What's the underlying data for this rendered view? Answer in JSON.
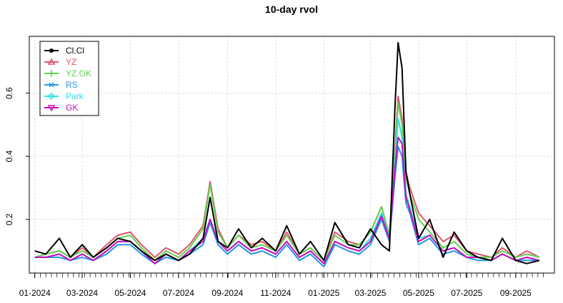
{
  "chart_data": {
    "type": "line",
    "title": "10-day rvol",
    "xlabel": "",
    "ylabel": "",
    "ylim": [
      0.03,
      0.78
    ],
    "y_ticks": [
      0.2,
      0.4,
      0.6
    ],
    "y_tick_labels": [
      "0.2",
      "0.4",
      "0.6"
    ],
    "x_range": [
      "2023-12-25",
      "2025-10-20"
    ],
    "x_ticks": [
      "2024-01-01",
      "2024-03-01",
      "2024-05-01",
      "2024-07-01",
      "2024-09-01",
      "2024-11-01",
      "2025-01-01",
      "2025-03-01",
      "2025-05-01",
      "2025-07-01",
      "2025-09-01"
    ],
    "x_tick_labels": [
      "01-2024",
      "03-2024",
      "05-2024",
      "07-2024",
      "09-2024",
      "11-2024",
      "01-2025",
      "03-2025",
      "05-2025",
      "07-2025",
      "09-2025"
    ],
    "grid": true,
    "legend_position": "top-left",
    "series": [
      {
        "name": "Cl.Cl",
        "color": "#000000",
        "marker": "circle",
        "x": [
          "2024-01-01",
          "2024-01-15",
          "2024-02-01",
          "2024-02-15",
          "2024-03-01",
          "2024-03-15",
          "2024-04-01",
          "2024-04-15",
          "2024-05-01",
          "2024-05-15",
          "2024-06-01",
          "2024-06-15",
          "2024-07-01",
          "2024-07-15",
          "2024-08-01",
          "2024-08-10",
          "2024-08-20",
          "2024-09-01",
          "2024-09-15",
          "2024-10-01",
          "2024-10-15",
          "2024-11-01",
          "2024-11-15",
          "2024-12-01",
          "2024-12-15",
          "2025-01-01",
          "2025-01-15",
          "2025-02-01",
          "2025-02-15",
          "2025-03-01",
          "2025-03-15",
          "2025-03-25",
          "2025-04-01",
          "2025-04-05",
          "2025-04-10",
          "2025-04-15",
          "2025-04-20",
          "2025-05-01",
          "2025-05-15",
          "2025-06-01",
          "2025-06-15",
          "2025-07-01",
          "2025-07-15",
          "2025-08-01",
          "2025-08-15",
          "2025-09-01",
          "2025-09-15",
          "2025-10-01"
        ],
        "values": [
          0.1,
          0.09,
          0.14,
          0.08,
          0.12,
          0.08,
          0.11,
          0.14,
          0.13,
          0.1,
          0.07,
          0.09,
          0.07,
          0.09,
          0.14,
          0.27,
          0.13,
          0.11,
          0.17,
          0.11,
          0.14,
          0.1,
          0.18,
          0.09,
          0.13,
          0.07,
          0.19,
          0.12,
          0.11,
          0.17,
          0.12,
          0.1,
          0.55,
          0.76,
          0.68,
          0.35,
          0.28,
          0.14,
          0.2,
          0.08,
          0.16,
          0.1,
          0.08,
          0.07,
          0.14,
          0.07,
          0.06,
          0.07
        ]
      },
      {
        "name": "YZ",
        "color": "#DF536B",
        "marker": "triangle",
        "x": [
          "2024-01-01",
          "2024-01-15",
          "2024-02-01",
          "2024-02-15",
          "2024-03-01",
          "2024-03-15",
          "2024-04-01",
          "2024-04-15",
          "2024-05-01",
          "2024-05-15",
          "2024-06-01",
          "2024-06-15",
          "2024-07-01",
          "2024-07-15",
          "2024-08-01",
          "2024-08-10",
          "2024-08-20",
          "2024-09-01",
          "2024-09-15",
          "2024-10-01",
          "2024-10-15",
          "2024-11-01",
          "2024-11-15",
          "2024-12-01",
          "2024-12-15",
          "2025-01-01",
          "2025-01-15",
          "2025-02-01",
          "2025-02-15",
          "2025-03-01",
          "2025-03-15",
          "2025-03-25",
          "2025-04-01",
          "2025-04-05",
          "2025-04-10",
          "2025-04-15",
          "2025-04-20",
          "2025-05-01",
          "2025-05-15",
          "2025-06-01",
          "2025-06-15",
          "2025-07-01",
          "2025-07-15",
          "2025-08-01",
          "2025-08-15",
          "2025-09-01",
          "2025-09-15",
          "2025-10-01"
        ],
        "values": [
          0.08,
          0.09,
          0.1,
          0.08,
          0.11,
          0.08,
          0.12,
          0.15,
          0.16,
          0.12,
          0.08,
          0.11,
          0.09,
          0.12,
          0.18,
          0.32,
          0.17,
          0.11,
          0.15,
          0.12,
          0.13,
          0.1,
          0.16,
          0.09,
          0.11,
          0.07,
          0.16,
          0.13,
          0.12,
          0.16,
          0.24,
          0.15,
          0.42,
          0.59,
          0.52,
          0.35,
          0.3,
          0.22,
          0.18,
          0.13,
          0.15,
          0.1,
          0.09,
          0.08,
          0.11,
          0.08,
          0.1,
          0.08
        ]
      },
      {
        "name": "YZ.GK",
        "color": "#61D04F",
        "marker": "plus",
        "x": [
          "2024-01-01",
          "2024-01-15",
          "2024-02-01",
          "2024-02-15",
          "2024-03-01",
          "2024-03-15",
          "2024-04-01",
          "2024-04-15",
          "2024-05-01",
          "2024-05-15",
          "2024-06-01",
          "2024-06-15",
          "2024-07-01",
          "2024-07-15",
          "2024-08-01",
          "2024-08-10",
          "2024-08-20",
          "2024-09-01",
          "2024-09-15",
          "2024-10-01",
          "2024-10-15",
          "2024-11-01",
          "2024-11-15",
          "2024-12-01",
          "2024-12-15",
          "2025-01-01",
          "2025-01-15",
          "2025-02-01",
          "2025-02-15",
          "2025-03-01",
          "2025-03-15",
          "2025-03-25",
          "2025-04-01",
          "2025-04-05",
          "2025-04-10",
          "2025-04-15",
          "2025-04-20",
          "2025-05-01",
          "2025-05-15",
          "2025-06-01",
          "2025-06-15",
          "2025-07-01",
          "2025-07-15",
          "2025-08-01",
          "2025-08-15",
          "2025-09-01",
          "2025-09-15",
          "2025-10-01"
        ],
        "values": [
          0.08,
          0.09,
          0.1,
          0.08,
          0.1,
          0.08,
          0.11,
          0.14,
          0.15,
          0.11,
          0.07,
          0.1,
          0.08,
          0.11,
          0.17,
          0.31,
          0.16,
          0.11,
          0.15,
          0.11,
          0.12,
          0.1,
          0.15,
          0.09,
          0.11,
          0.07,
          0.15,
          0.12,
          0.12,
          0.16,
          0.24,
          0.15,
          0.4,
          0.57,
          0.5,
          0.33,
          0.28,
          0.2,
          0.16,
          0.11,
          0.13,
          0.09,
          0.08,
          0.08,
          0.1,
          0.08,
          0.09,
          0.08
        ]
      },
      {
        "name": "RS",
        "color": "#2297E6",
        "marker": "cross",
        "x": [
          "2024-01-01",
          "2024-01-15",
          "2024-02-01",
          "2024-02-15",
          "2024-03-01",
          "2024-03-15",
          "2024-04-01",
          "2024-04-15",
          "2024-05-01",
          "2024-05-15",
          "2024-06-01",
          "2024-06-15",
          "2024-07-01",
          "2024-07-15",
          "2024-08-01",
          "2024-08-10",
          "2024-08-20",
          "2024-09-01",
          "2024-09-15",
          "2024-10-01",
          "2024-10-15",
          "2024-11-01",
          "2024-11-15",
          "2024-12-01",
          "2024-12-15",
          "2025-01-01",
          "2025-01-15",
          "2025-02-01",
          "2025-02-15",
          "2025-03-01",
          "2025-03-15",
          "2025-03-25",
          "2025-04-01",
          "2025-04-05",
          "2025-04-10",
          "2025-04-15",
          "2025-04-20",
          "2025-05-01",
          "2025-05-15",
          "2025-06-01",
          "2025-06-15",
          "2025-07-01",
          "2025-07-15",
          "2025-08-01",
          "2025-08-15",
          "2025-09-01",
          "2025-09-15",
          "2025-10-01"
        ],
        "values": [
          0.08,
          0.08,
          0.08,
          0.07,
          0.08,
          0.07,
          0.09,
          0.12,
          0.12,
          0.09,
          0.06,
          0.08,
          0.07,
          0.09,
          0.12,
          0.19,
          0.12,
          0.09,
          0.12,
          0.09,
          0.1,
          0.08,
          0.12,
          0.07,
          0.09,
          0.05,
          0.12,
          0.1,
          0.09,
          0.12,
          0.2,
          0.13,
          0.33,
          0.43,
          0.4,
          0.25,
          0.22,
          0.12,
          0.14,
          0.09,
          0.1,
          0.08,
          0.07,
          0.07,
          0.09,
          0.07,
          0.07,
          0.07
        ]
      },
      {
        "name": "Park",
        "color": "#28E2E5",
        "marker": "diamond",
        "x": [
          "2024-01-01",
          "2024-01-15",
          "2024-02-01",
          "2024-02-15",
          "2024-03-01",
          "2024-03-15",
          "2024-04-01",
          "2024-04-15",
          "2024-05-01",
          "2024-05-15",
          "2024-06-01",
          "2024-06-15",
          "2024-07-01",
          "2024-07-15",
          "2024-08-01",
          "2024-08-10",
          "2024-08-20",
          "2024-09-01",
          "2024-09-15",
          "2024-10-01",
          "2024-10-15",
          "2024-11-01",
          "2024-11-15",
          "2024-12-01",
          "2024-12-15",
          "2025-01-01",
          "2025-01-15",
          "2025-02-01",
          "2025-02-15",
          "2025-03-01",
          "2025-03-15",
          "2025-03-25",
          "2025-04-01",
          "2025-04-05",
          "2025-04-10",
          "2025-04-15",
          "2025-04-20",
          "2025-05-01",
          "2025-05-15",
          "2025-06-01",
          "2025-06-15",
          "2025-07-01",
          "2025-07-15",
          "2025-08-01",
          "2025-08-15",
          "2025-09-01",
          "2025-09-15",
          "2025-10-01"
        ],
        "values": [
          0.08,
          0.08,
          0.09,
          0.07,
          0.09,
          0.07,
          0.1,
          0.13,
          0.13,
          0.1,
          0.06,
          0.09,
          0.07,
          0.1,
          0.14,
          0.2,
          0.13,
          0.1,
          0.13,
          0.1,
          0.11,
          0.09,
          0.13,
          0.08,
          0.1,
          0.06,
          0.13,
          0.11,
          0.1,
          0.14,
          0.22,
          0.14,
          0.38,
          0.52,
          0.46,
          0.28,
          0.24,
          0.14,
          0.15,
          0.1,
          0.11,
          0.08,
          0.08,
          0.07,
          0.09,
          0.07,
          0.08,
          0.07
        ]
      },
      {
        "name": "GK",
        "color": "#CD0BBC",
        "marker": "triangle-down",
        "x": [
          "2024-01-01",
          "2024-01-15",
          "2024-02-01",
          "2024-02-15",
          "2024-03-01",
          "2024-03-15",
          "2024-04-01",
          "2024-04-15",
          "2024-05-01",
          "2024-05-15",
          "2024-06-01",
          "2024-06-15",
          "2024-07-01",
          "2024-07-15",
          "2024-08-01",
          "2024-08-10",
          "2024-08-20",
          "2024-09-01",
          "2024-09-15",
          "2024-10-01",
          "2024-10-15",
          "2024-11-01",
          "2024-11-15",
          "2024-12-01",
          "2024-12-15",
          "2025-01-01",
          "2025-01-15",
          "2025-02-01",
          "2025-02-15",
          "2025-03-01",
          "2025-03-15",
          "2025-03-25",
          "2025-04-01",
          "2025-04-05",
          "2025-04-10",
          "2025-04-15",
          "2025-04-20",
          "2025-05-01",
          "2025-05-15",
          "2025-06-01",
          "2025-06-15",
          "2025-07-01",
          "2025-07-15",
          "2025-08-01",
          "2025-08-15",
          "2025-09-01",
          "2025-09-15",
          "2025-10-01"
        ],
        "values": [
          0.08,
          0.08,
          0.09,
          0.07,
          0.09,
          0.07,
          0.1,
          0.13,
          0.13,
          0.1,
          0.06,
          0.09,
          0.07,
          0.1,
          0.13,
          0.2,
          0.13,
          0.1,
          0.13,
          0.1,
          0.11,
          0.09,
          0.13,
          0.08,
          0.1,
          0.06,
          0.13,
          0.11,
          0.1,
          0.13,
          0.21,
          0.14,
          0.36,
          0.46,
          0.44,
          0.27,
          0.23,
          0.13,
          0.15,
          0.1,
          0.11,
          0.08,
          0.08,
          0.07,
          0.09,
          0.07,
          0.08,
          0.07
        ]
      }
    ]
  }
}
